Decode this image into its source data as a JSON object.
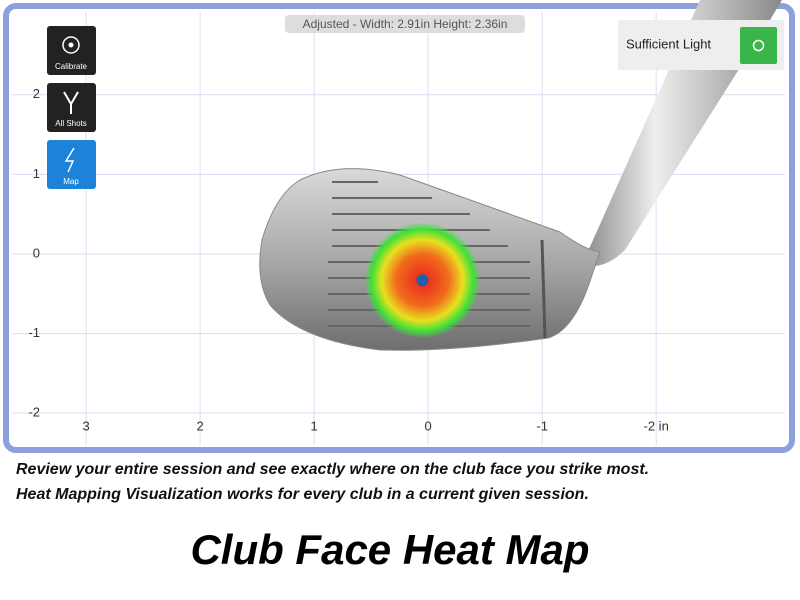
{
  "status": "Adjusted - Width: 2.91in Height: 2.36in",
  "tools": [
    "Calibrate",
    "All Shots",
    "Map"
  ],
  "light": "Sufficient Light",
  "plot": {
    "xlim": [
      3.65,
      -3.13
    ],
    "ylim": [
      -2.4,
      3.04
    ],
    "xticks": [
      3,
      2,
      1,
      0,
      -1,
      {
        "value": -2,
        "label": "-2 in"
      }
    ],
    "yticks": [
      2,
      1,
      0,
      -1,
      -2
    ],
    "impact": {
      "x": 0.05,
      "y": -0.33
    }
  },
  "caption": [
    "Review your entire session and see exactly where on the club face you strike most.",
    "Heat Mapping Visualization works for every club in a current given session."
  ],
  "title": "Club Face Heat Map"
}
